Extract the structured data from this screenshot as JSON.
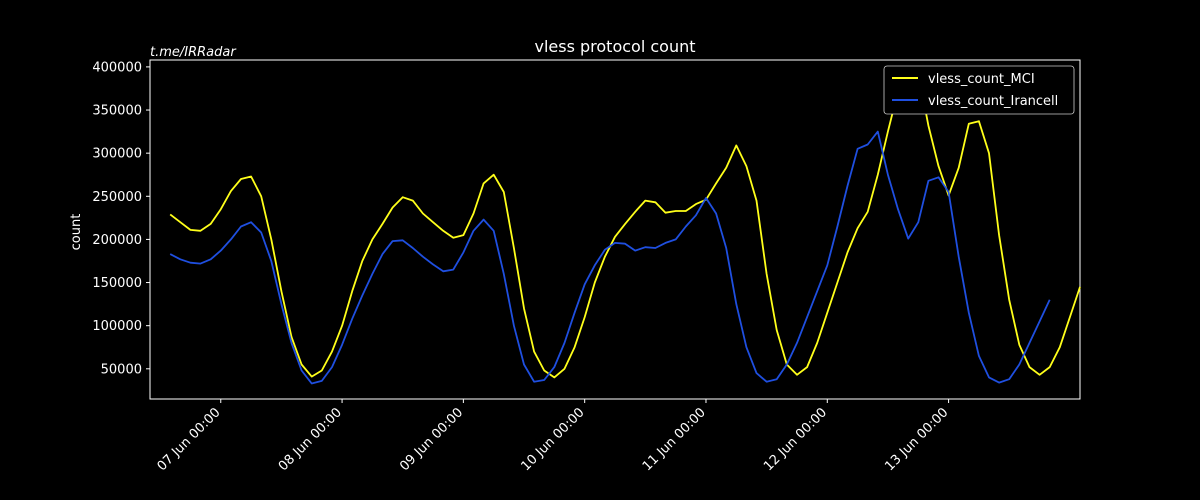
{
  "watermark": "t.me/IRRadar",
  "chart_data": {
    "type": "line",
    "title": "vless protocol count",
    "xlabel": "",
    "ylabel": "count",
    "ylim": [
      15000,
      408000
    ],
    "xlim": [
      "2025-06-06T10:00",
      "2025-06-14T02:00"
    ],
    "yticks": [
      50000,
      100000,
      150000,
      200000,
      250000,
      300000,
      350000,
      400000
    ],
    "xticks": [
      "2025-06-07T00:00",
      "2025-06-08T00:00",
      "2025-06-09T00:00",
      "2025-06-10T00:00",
      "2025-06-11T00:00",
      "2025-06-12T00:00",
      "2025-06-13T00:00"
    ],
    "xtick_labels": [
      "07 Jun 00:00",
      "08 Jun 00:00",
      "09 Jun 00:00",
      "10 Jun 00:00",
      "11 Jun 00:00",
      "12 Jun 00:00",
      "13 Jun 00:00"
    ],
    "grid": false,
    "legend_position": "top-right",
    "background": "#000000",
    "foreground": "#ffffff",
    "series": [
      {
        "name": "vless_count_MCI",
        "color": "#ffff1a",
        "points": [
          [
            "2025-06-06T14:00",
            229000
          ],
          [
            "2025-06-06T16:00",
            220000
          ],
          [
            "2025-06-06T18:00",
            211000
          ],
          [
            "2025-06-06T20:00",
            210000
          ],
          [
            "2025-06-06T22:00",
            218000
          ],
          [
            "2025-06-07T00:00",
            235000
          ],
          [
            "2025-06-07T02:00",
            256000
          ],
          [
            "2025-06-07T04:00",
            270000
          ],
          [
            "2025-06-07T06:00",
            273000
          ],
          [
            "2025-06-07T08:00",
            250000
          ],
          [
            "2025-06-07T10:00",
            200000
          ],
          [
            "2025-06-07T12:00",
            140000
          ],
          [
            "2025-06-07T14:00",
            87000
          ],
          [
            "2025-06-07T16:00",
            55000
          ],
          [
            "2025-06-07T18:00",
            41000
          ],
          [
            "2025-06-07T20:00",
            48000
          ],
          [
            "2025-06-07T22:00",
            70000
          ],
          [
            "2025-06-08T00:00",
            100000
          ],
          [
            "2025-06-08T02:00",
            140000
          ],
          [
            "2025-06-08T04:00",
            175000
          ],
          [
            "2025-06-08T06:00",
            200000
          ],
          [
            "2025-06-08T08:00",
            218000
          ],
          [
            "2025-06-08T10:00",
            237000
          ],
          [
            "2025-06-08T12:00",
            249000
          ],
          [
            "2025-06-08T14:00",
            245000
          ],
          [
            "2025-06-08T16:00",
            230000
          ],
          [
            "2025-06-08T18:00",
            220000
          ],
          [
            "2025-06-08T20:00",
            210000
          ],
          [
            "2025-06-08T22:00",
            202000
          ],
          [
            "2025-06-09T00:00",
            205000
          ],
          [
            "2025-06-09T02:00",
            230000
          ],
          [
            "2025-06-09T04:00",
            265000
          ],
          [
            "2025-06-09T06:00",
            275000
          ],
          [
            "2025-06-09T08:00",
            255000
          ],
          [
            "2025-06-09T10:00",
            190000
          ],
          [
            "2025-06-09T12:00",
            120000
          ],
          [
            "2025-06-09T14:00",
            70000
          ],
          [
            "2025-06-09T16:00",
            48000
          ],
          [
            "2025-06-09T18:00",
            40000
          ],
          [
            "2025-06-09T20:00",
            50000
          ],
          [
            "2025-06-09T22:00",
            75000
          ],
          [
            "2025-06-10T00:00",
            110000
          ],
          [
            "2025-06-10T02:00",
            150000
          ],
          [
            "2025-06-10T04:00",
            180000
          ],
          [
            "2025-06-10T06:00",
            203000
          ],
          [
            "2025-06-10T08:00",
            218000
          ],
          [
            "2025-06-10T10:00",
            232000
          ],
          [
            "2025-06-10T12:00",
            245000
          ],
          [
            "2025-06-10T14:00",
            243000
          ],
          [
            "2025-06-10T16:00",
            231000
          ],
          [
            "2025-06-10T18:00",
            233000
          ],
          [
            "2025-06-10T20:00",
            233000
          ],
          [
            "2025-06-10T22:00",
            241000
          ],
          [
            "2025-06-11T00:00",
            246000
          ],
          [
            "2025-06-11T02:00",
            265000
          ],
          [
            "2025-06-11T04:00",
            283000
          ],
          [
            "2025-06-11T06:00",
            309000
          ],
          [
            "2025-06-11T08:00",
            285000
          ],
          [
            "2025-06-11T10:00",
            245000
          ],
          [
            "2025-06-11T12:00",
            160000
          ],
          [
            "2025-06-11T14:00",
            95000
          ],
          [
            "2025-06-11T16:00",
            55000
          ],
          [
            "2025-06-11T18:00",
            43000
          ],
          [
            "2025-06-11T20:00",
            52000
          ],
          [
            "2025-06-11T22:00",
            80000
          ],
          [
            "2025-06-12T00:00",
            115000
          ],
          [
            "2025-06-12T02:00",
            150000
          ],
          [
            "2025-06-12T04:00",
            185000
          ],
          [
            "2025-06-12T06:00",
            213000
          ],
          [
            "2025-06-12T08:00",
            232000
          ],
          [
            "2025-06-12T10:00",
            275000
          ],
          [
            "2025-06-12T12:00",
            325000
          ],
          [
            "2025-06-12T14:00",
            372000
          ],
          [
            "2025-06-12T16:00",
            376000
          ],
          [
            "2025-06-12T18:00",
            393000
          ],
          [
            "2025-06-12T20:00",
            332000
          ],
          [
            "2025-06-12T22:00",
            285000
          ],
          [
            "2025-06-13T00:00",
            251000
          ],
          [
            "2025-06-13T02:00",
            283000
          ],
          [
            "2025-06-13T04:00",
            334000
          ],
          [
            "2025-06-13T06:00",
            337000
          ],
          [
            "2025-06-13T08:00",
            300000
          ],
          [
            "2025-06-13T10:00",
            205000
          ],
          [
            "2025-06-13T12:00",
            130000
          ],
          [
            "2025-06-13T14:00",
            78000
          ],
          [
            "2025-06-13T16:00",
            52000
          ],
          [
            "2025-06-13T18:00",
            43000
          ],
          [
            "2025-06-13T20:00",
            52000
          ],
          [
            "2025-06-13T22:00",
            75000
          ],
          [
            "2025-06-14T00:00",
            110000
          ],
          [
            "2025-06-14T02:00",
            145000
          ]
        ]
      },
      {
        "name": "vless_count_Irancell",
        "color": "#1f4fe0",
        "points": [
          [
            "2025-06-06T14:00",
            183000
          ],
          [
            "2025-06-06T16:00",
            177000
          ],
          [
            "2025-06-06T18:00",
            173000
          ],
          [
            "2025-06-06T20:00",
            172000
          ],
          [
            "2025-06-06T22:00",
            177000
          ],
          [
            "2025-06-07T00:00",
            187000
          ],
          [
            "2025-06-07T02:00",
            200000
          ],
          [
            "2025-06-07T04:00",
            215000
          ],
          [
            "2025-06-07T06:00",
            220000
          ],
          [
            "2025-06-07T08:00",
            208000
          ],
          [
            "2025-06-07T10:00",
            175000
          ],
          [
            "2025-06-07T12:00",
            125000
          ],
          [
            "2025-06-07T14:00",
            80000
          ],
          [
            "2025-06-07T16:00",
            48000
          ],
          [
            "2025-06-07T18:00",
            33000
          ],
          [
            "2025-06-07T20:00",
            36000
          ],
          [
            "2025-06-07T22:00",
            52000
          ],
          [
            "2025-06-08T00:00",
            78000
          ],
          [
            "2025-06-08T02:00",
            108000
          ],
          [
            "2025-06-08T04:00",
            135000
          ],
          [
            "2025-06-08T06:00",
            160000
          ],
          [
            "2025-06-08T08:00",
            183000
          ],
          [
            "2025-06-08T10:00",
            198000
          ],
          [
            "2025-06-08T12:00",
            199000
          ],
          [
            "2025-06-08T14:00",
            190000
          ],
          [
            "2025-06-08T16:00",
            180000
          ],
          [
            "2025-06-08T18:00",
            171000
          ],
          [
            "2025-06-08T20:00",
            163000
          ],
          [
            "2025-06-08T22:00",
            165000
          ],
          [
            "2025-06-09T00:00",
            185000
          ],
          [
            "2025-06-09T02:00",
            210000
          ],
          [
            "2025-06-09T04:00",
            223000
          ],
          [
            "2025-06-09T06:00",
            210000
          ],
          [
            "2025-06-09T08:00",
            160000
          ],
          [
            "2025-06-09T10:00",
            100000
          ],
          [
            "2025-06-09T12:00",
            55000
          ],
          [
            "2025-06-09T14:00",
            35000
          ],
          [
            "2025-06-09T16:00",
            37000
          ],
          [
            "2025-06-09T18:00",
            52000
          ],
          [
            "2025-06-09T20:00",
            80000
          ],
          [
            "2025-06-09T22:00",
            115000
          ],
          [
            "2025-06-10T00:00",
            148000
          ],
          [
            "2025-06-10T02:00",
            170000
          ],
          [
            "2025-06-10T04:00",
            188000
          ],
          [
            "2025-06-10T06:00",
            196000
          ],
          [
            "2025-06-10T08:00",
            195000
          ],
          [
            "2025-06-10T10:00",
            187000
          ],
          [
            "2025-06-10T12:00",
            191000
          ],
          [
            "2025-06-10T14:00",
            190000
          ],
          [
            "2025-06-10T16:00",
            196000
          ],
          [
            "2025-06-10T18:00",
            200000
          ],
          [
            "2025-06-10T20:00",
            215000
          ],
          [
            "2025-06-10T22:00",
            228000
          ],
          [
            "2025-06-11T00:00",
            248000
          ],
          [
            "2025-06-11T02:00",
            230000
          ],
          [
            "2025-06-11T04:00",
            190000
          ],
          [
            "2025-06-11T06:00",
            125000
          ],
          [
            "2025-06-11T08:00",
            75000
          ],
          [
            "2025-06-11T10:00",
            45000
          ],
          [
            "2025-06-11T12:00",
            35000
          ],
          [
            "2025-06-11T14:00",
            38000
          ],
          [
            "2025-06-11T16:00",
            55000
          ],
          [
            "2025-06-11T18:00",
            80000
          ],
          [
            "2025-06-11T20:00",
            110000
          ],
          [
            "2025-06-11T22:00",
            140000
          ],
          [
            "2025-06-12T00:00",
            170000
          ],
          [
            "2025-06-12T02:00",
            215000
          ],
          [
            "2025-06-12T04:00",
            262000
          ],
          [
            "2025-06-12T06:00",
            305000
          ],
          [
            "2025-06-12T08:00",
            310000
          ],
          [
            "2025-06-12T10:00",
            325000
          ],
          [
            "2025-06-12T12:00",
            275000
          ],
          [
            "2025-06-12T14:00",
            235000
          ],
          [
            "2025-06-12T16:00",
            201000
          ],
          [
            "2025-06-12T18:00",
            220000
          ],
          [
            "2025-06-12T20:00",
            268000
          ],
          [
            "2025-06-12T22:00",
            272000
          ],
          [
            "2025-06-13T00:00",
            255000
          ],
          [
            "2025-06-13T02:00",
            180000
          ],
          [
            "2025-06-13T04:00",
            115000
          ],
          [
            "2025-06-13T06:00",
            65000
          ],
          [
            "2025-06-13T08:00",
            40000
          ],
          [
            "2025-06-13T10:00",
            34000
          ],
          [
            "2025-06-13T12:00",
            38000
          ],
          [
            "2025-06-13T14:00",
            55000
          ],
          [
            "2025-06-13T16:00",
            80000
          ],
          [
            "2025-06-13T18:00",
            105000
          ],
          [
            "2025-06-13T20:00",
            130000
          ]
        ]
      }
    ]
  }
}
